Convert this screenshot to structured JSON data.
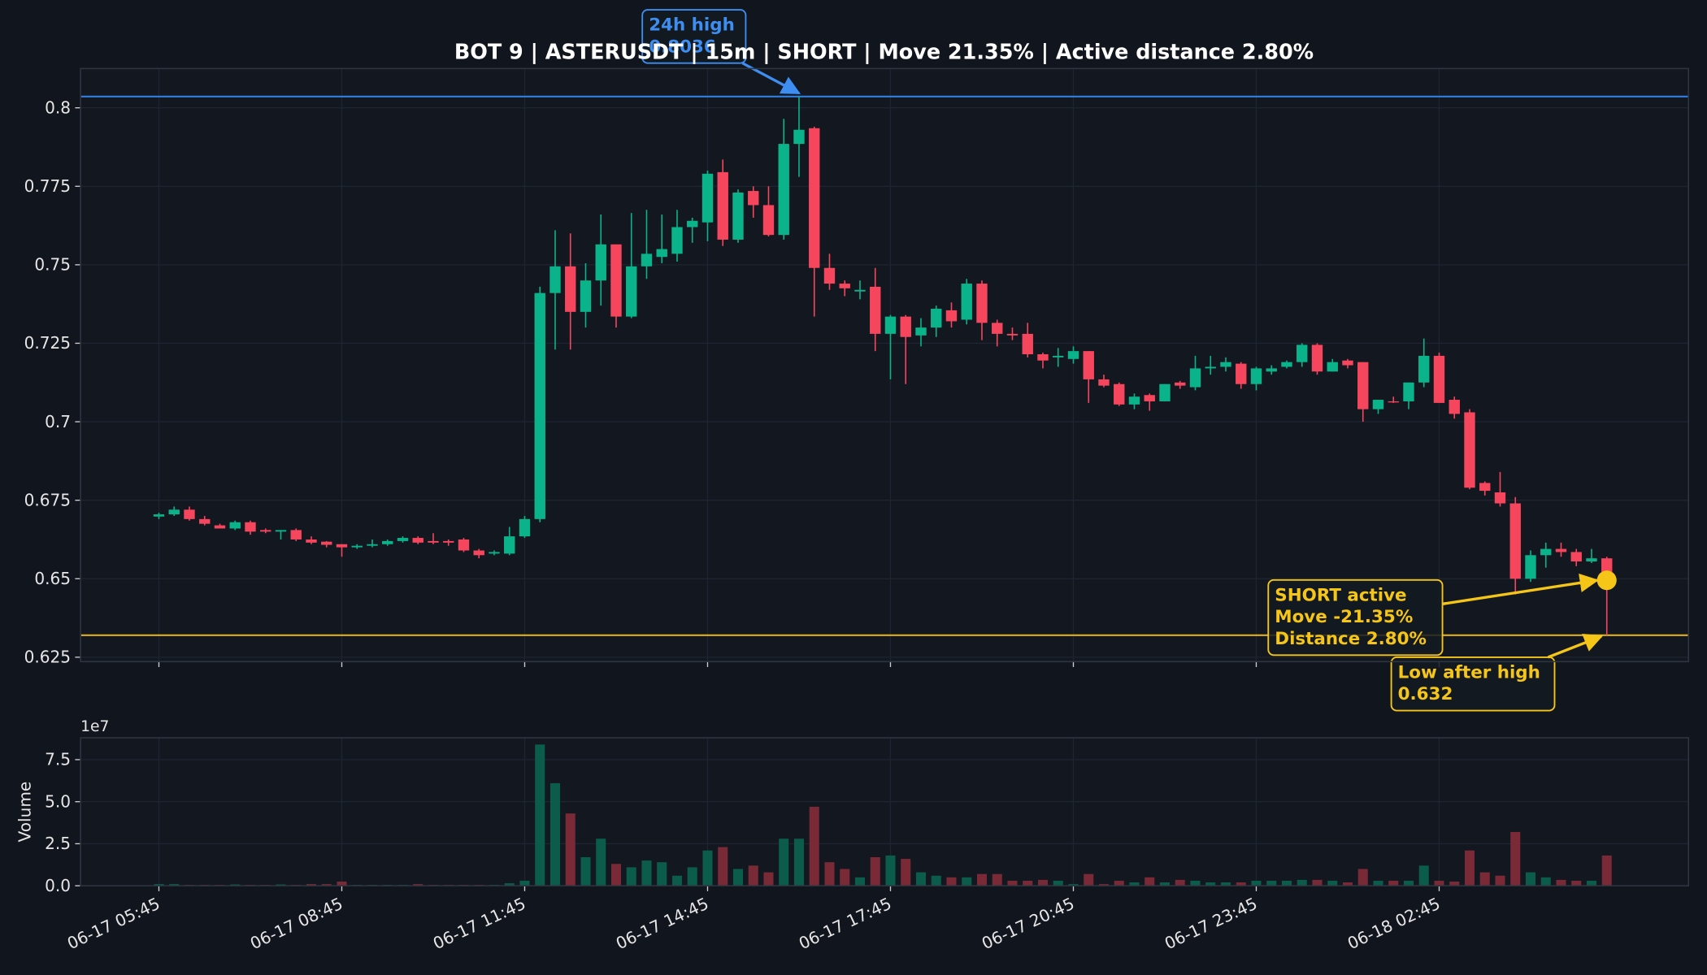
{
  "chart_data": [
    {
      "type": "candlestick",
      "title": "BOT 9 | ASTERUSDT | 15m | SHORT | Move 21.35% | Active distance 2.80%",
      "up_color": "#0ab38a",
      "down_color": "#f6465d",
      "grid": true,
      "xlim": [
        -5.14,
        100.36
      ],
      "ylim": [
        0.6236,
        0.8125
      ],
      "yticks": [
        0.625,
        0.65,
        0.675,
        0.7,
        0.725,
        0.75,
        0.775,
        0.8
      ],
      "open": [
        0.6698,
        0.6705,
        0.672,
        0.669,
        0.667,
        0.666,
        0.668,
        0.6655,
        0.665,
        0.6655,
        0.6625,
        0.6618,
        0.661,
        0.66,
        0.6605,
        0.661,
        0.662,
        0.663,
        0.662,
        0.662,
        0.6625,
        0.659,
        0.658,
        0.658,
        0.6635,
        0.669,
        0.741,
        0.7495,
        0.735,
        0.745,
        0.7565,
        0.7335,
        0.7495,
        0.7525,
        0.7535,
        0.762,
        0.7635,
        0.7795,
        0.758,
        0.7735,
        0.769,
        0.7595,
        0.7885,
        0.7935,
        0.749,
        0.744,
        0.7415,
        0.743,
        0.728,
        0.7335,
        0.7275,
        0.73,
        0.7355,
        0.7325,
        0.744,
        0.7315,
        0.728,
        0.728,
        0.7215,
        0.7205,
        0.72,
        0.7225,
        0.7135,
        0.712,
        0.7055,
        0.7085,
        0.7065,
        0.7125,
        0.711,
        0.717,
        0.7175,
        0.7185,
        0.712,
        0.716,
        0.7175,
        0.719,
        0.7245,
        0.716,
        0.7195,
        0.719,
        0.704,
        0.7065,
        0.7065,
        0.7125,
        0.721,
        0.707,
        0.703,
        0.6805,
        0.6775,
        0.674,
        0.65,
        0.6575,
        0.6595,
        0.6585,
        0.6555,
        0.6565
      ],
      "high": [
        0.671,
        0.673,
        0.673,
        0.67,
        0.6675,
        0.6685,
        0.6685,
        0.666,
        0.6655,
        0.666,
        0.6635,
        0.662,
        0.661,
        0.661,
        0.6625,
        0.6625,
        0.6635,
        0.6635,
        0.6645,
        0.6625,
        0.663,
        0.6595,
        0.659,
        0.6665,
        0.67,
        0.743,
        0.761,
        0.76,
        0.7505,
        0.766,
        0.7565,
        0.7665,
        0.7675,
        0.766,
        0.7675,
        0.765,
        0.78,
        0.7835,
        0.774,
        0.775,
        0.775,
        0.7965,
        0.8036,
        0.794,
        0.7535,
        0.745,
        0.745,
        0.749,
        0.734,
        0.734,
        0.733,
        0.737,
        0.738,
        0.7455,
        0.745,
        0.7325,
        0.73,
        0.7315,
        0.722,
        0.7235,
        0.724,
        0.7225,
        0.715,
        0.7125,
        0.709,
        0.709,
        0.712,
        0.713,
        0.721,
        0.721,
        0.7205,
        0.719,
        0.7175,
        0.718,
        0.7195,
        0.725,
        0.725,
        0.72,
        0.72,
        0.719,
        0.707,
        0.708,
        0.7125,
        0.7265,
        0.722,
        0.708,
        0.704,
        0.681,
        0.684,
        0.676,
        0.659,
        0.6615,
        0.6615,
        0.6595,
        0.6595,
        0.657
      ],
      "low": [
        0.669,
        0.67,
        0.6685,
        0.667,
        0.666,
        0.6655,
        0.664,
        0.6645,
        0.6625,
        0.662,
        0.661,
        0.66,
        0.657,
        0.6595,
        0.66,
        0.6605,
        0.6615,
        0.661,
        0.661,
        0.6605,
        0.6585,
        0.6565,
        0.6575,
        0.6575,
        0.663,
        0.668,
        0.723,
        0.723,
        0.73,
        0.737,
        0.73,
        0.733,
        0.7455,
        0.7505,
        0.751,
        0.757,
        0.7575,
        0.756,
        0.757,
        0.765,
        0.759,
        0.758,
        0.778,
        0.7335,
        0.742,
        0.74,
        0.739,
        0.7225,
        0.7135,
        0.712,
        0.724,
        0.727,
        0.73,
        0.731,
        0.726,
        0.724,
        0.726,
        0.7205,
        0.717,
        0.7175,
        0.7185,
        0.706,
        0.711,
        0.705,
        0.704,
        0.7035,
        0.7065,
        0.7105,
        0.71,
        0.715,
        0.716,
        0.7105,
        0.71,
        0.715,
        0.717,
        0.7175,
        0.715,
        0.716,
        0.717,
        0.7,
        0.7025,
        0.706,
        0.704,
        0.711,
        0.706,
        0.701,
        0.6785,
        0.6765,
        0.673,
        0.645,
        0.649,
        0.6535,
        0.657,
        0.654,
        0.655,
        0.632
      ],
      "close": [
        0.6705,
        0.672,
        0.669,
        0.6675,
        0.666,
        0.668,
        0.665,
        0.665,
        0.6655,
        0.6625,
        0.6615,
        0.6608,
        0.66,
        0.6605,
        0.661,
        0.662,
        0.663,
        0.6615,
        0.6615,
        0.6615,
        0.659,
        0.6575,
        0.6585,
        0.6635,
        0.669,
        0.741,
        0.7495,
        0.735,
        0.745,
        0.7565,
        0.7335,
        0.7495,
        0.7535,
        0.755,
        0.762,
        0.764,
        0.779,
        0.758,
        0.773,
        0.769,
        0.7595,
        0.7885,
        0.793,
        0.749,
        0.744,
        0.7425,
        0.742,
        0.728,
        0.7335,
        0.727,
        0.73,
        0.736,
        0.732,
        0.744,
        0.7315,
        0.728,
        0.7275,
        0.7215,
        0.7195,
        0.721,
        0.7225,
        0.7135,
        0.7115,
        0.7055,
        0.708,
        0.7065,
        0.712,
        0.7115,
        0.717,
        0.7175,
        0.719,
        0.712,
        0.717,
        0.717,
        0.719,
        0.7245,
        0.716,
        0.719,
        0.718,
        0.704,
        0.707,
        0.7063,
        0.7125,
        0.721,
        0.706,
        0.7025,
        0.679,
        0.678,
        0.674,
        0.65,
        0.6575,
        0.6595,
        0.6585,
        0.6555,
        0.6565,
        0.6495
      ],
      "hlines": [
        {
          "value": 0.8036,
          "color": "#2f7fe0"
        },
        {
          "value": 0.632,
          "color": "#e0b020"
        }
      ],
      "marker": {
        "x": 95,
        "y": 0.6495,
        "color": "#f5c518"
      },
      "annotations": [
        {
          "lines": [
            "24h high",
            "0.8036"
          ],
          "color": "#3d8ef0",
          "x": 42,
          "y": 0.8036
        },
        {
          "lines": [
            "SHORT active",
            "Move -21.35%",
            "Distance 2.80%"
          ],
          "color": "#f5c518",
          "x": 95,
          "y": 0.6495
        },
        {
          "lines": [
            "Low after high",
            "0.632"
          ],
          "color": "#f5c518",
          "x": 95,
          "y": 0.632
        }
      ]
    },
    {
      "type": "bar",
      "ylabel": "Volume",
      "offset_label": "1e7",
      "up_color": "#0b5c4b",
      "down_color": "#7a2a36",
      "grid": true,
      "xlim": [
        -5.14,
        100.36
      ],
      "ylim": [
        0,
        8.8
      ],
      "yticks": [
        {
          "value": 0,
          "label": "0.0"
        },
        2.5,
        {
          "value": 5,
          "label": "5.0"
        },
        7.5
      ],
      "xticks": [
        {
          "value": 0,
          "label": "06-17 05:45"
        },
        {
          "value": 12,
          "label": "06-17 08:45"
        },
        {
          "value": 24,
          "label": "06-17 11:45"
        },
        {
          "value": 36,
          "label": "06-17 14:45"
        },
        {
          "value": 48,
          "label": "06-17 17:45"
        },
        {
          "value": 60,
          "label": "06-17 20:45"
        },
        {
          "value": 72,
          "label": "06-17 23:45"
        },
        {
          "value": 84,
          "label": "06-18 02:45"
        }
      ],
      "values": [
        0.1,
        0.1,
        0.05,
        0.05,
        0.05,
        0.08,
        0.05,
        0.05,
        0.08,
        0.05,
        0.1,
        0.1,
        0.25,
        0.05,
        0.05,
        0.05,
        0.05,
        0.1,
        0.05,
        0.05,
        0.05,
        0.05,
        0.05,
        0.15,
        0.3,
        8.4,
        6.1,
        4.3,
        1.7,
        2.8,
        1.3,
        1.1,
        1.5,
        1.4,
        0.6,
        1.1,
        2.1,
        2.3,
        1.0,
        1.2,
        0.8,
        2.8,
        2.8,
        4.7,
        1.4,
        1.0,
        0.5,
        1.7,
        1.8,
        1.6,
        0.8,
        0.6,
        0.5,
        0.5,
        0.7,
        0.7,
        0.3,
        0.3,
        0.35,
        0.3,
        0.1,
        0.7,
        0.1,
        0.3,
        0.2,
        0.5,
        0.2,
        0.35,
        0.3,
        0.2,
        0.2,
        0.2,
        0.3,
        0.3,
        0.3,
        0.35,
        0.35,
        0.3,
        0.2,
        1.0,
        0.3,
        0.3,
        0.3,
        1.2,
        0.3,
        0.25,
        2.1,
        0.8,
        0.6,
        3.2,
        0.8,
        0.5,
        0.35,
        0.3,
        0.3,
        1.8
      ]
    }
  ]
}
